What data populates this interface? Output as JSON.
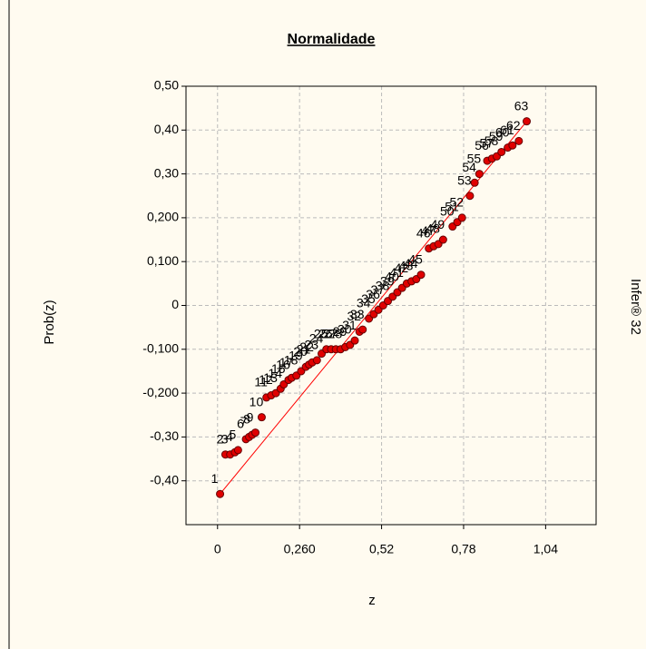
{
  "chart_data": {
    "type": "scatter",
    "title": "Normalidade",
    "x_label": "z",
    "y_label": "Prob(z)",
    "side_text": "Infer® 32",
    "x": [
      0.008,
      0.025,
      0.04,
      0.055,
      0.065,
      0.09,
      0.1,
      0.11,
      0.12,
      0.14,
      0.155,
      0.17,
      0.185,
      0.2,
      0.21,
      0.225,
      0.235,
      0.25,
      0.265,
      0.28,
      0.29,
      0.3,
      0.315,
      0.33,
      0.345,
      0.36,
      0.375,
      0.39,
      0.405,
      0.42,
      0.435,
      0.45,
      0.46,
      0.48,
      0.495,
      0.51,
      0.525,
      0.54,
      0.555,
      0.57,
      0.585,
      0.6,
      0.615,
      0.63,
      0.645,
      0.67,
      0.685,
      0.7,
      0.715,
      0.745,
      0.76,
      0.775,
      0.8,
      0.815,
      0.83,
      0.855,
      0.87,
      0.885,
      0.9,
      0.92,
      0.935,
      0.955,
      0.98
    ],
    "values": [
      -0.43,
      -0.34,
      -0.34,
      -0.335,
      -0.33,
      -0.305,
      -0.3,
      -0.295,
      -0.29,
      -0.255,
      -0.21,
      -0.205,
      -0.2,
      -0.19,
      -0.18,
      -0.17,
      -0.165,
      -0.16,
      -0.15,
      -0.14,
      -0.135,
      -0.13,
      -0.125,
      -0.11,
      -0.1,
      -0.1,
      -0.1,
      -0.1,
      -0.095,
      -0.09,
      -0.08,
      -0.06,
      -0.055,
      -0.03,
      -0.02,
      -0.01,
      0,
      0.01,
      0.02,
      0.03,
      0.04,
      0.05,
      0.055,
      0.06,
      0.07,
      0.13,
      0.135,
      0.14,
      0.15,
      0.18,
      0.19,
      0.2,
      0.25,
      0.28,
      0.3,
      0.33,
      0.335,
      0.34,
      0.35,
      0.36,
      0.365,
      0.375,
      0.42
    ],
    "point_labels": [
      "1",
      "2",
      "3",
      "4",
      "5",
      "6",
      "7",
      "8",
      "9",
      "10",
      "11",
      "12",
      "13",
      "14",
      "15",
      "16",
      "17",
      "18",
      "19",
      "20",
      "21",
      "22",
      "23",
      "24",
      "25",
      "26",
      "27",
      "28",
      "29",
      "30",
      "31",
      "32",
      "33",
      "34",
      "35",
      "36",
      "37",
      "38",
      "39",
      "40",
      "41",
      "42",
      "43",
      "44",
      "45",
      "46",
      "47",
      "48",
      "49",
      "50",
      "51",
      "52",
      "53",
      "54",
      "55",
      "56",
      "57",
      "58",
      "59",
      "60",
      "61",
      "62",
      "63"
    ],
    "color": "#e00000",
    "fit_line": {
      "x": [
        0.008,
        0.98
      ],
      "y": [
        -0.43,
        0.42
      ],
      "color": "#ff0000"
    },
    "xlim": [
      -0.1,
      1.2
    ],
    "ylim": [
      -0.5,
      0.5
    ],
    "xticks": [
      0,
      {
        "value": 0.26,
        "label": "0,260"
      },
      {
        "value": 0.52,
        "label": "0,52"
      },
      {
        "value": 0.78,
        "label": "0,78"
      },
      {
        "value": 1.04,
        "label": "1,04"
      }
    ],
    "yticks": [
      {
        "value": 0.5,
        "label": "0,50"
      },
      {
        "value": 0.4,
        "label": "0,40"
      },
      {
        "value": 0.3,
        "label": "0,30"
      },
      {
        "value": 0.2,
        "label": "0,200"
      },
      {
        "value": 0.1,
        "label": "0,100"
      },
      0,
      {
        "value": -0.1,
        "label": "-0,100"
      },
      {
        "value": -0.2,
        "label": "-0,200"
      },
      {
        "value": -0.3,
        "label": "-0,30"
      },
      {
        "value": -0.4,
        "label": "-0,40"
      }
    ],
    "grid": true
  }
}
